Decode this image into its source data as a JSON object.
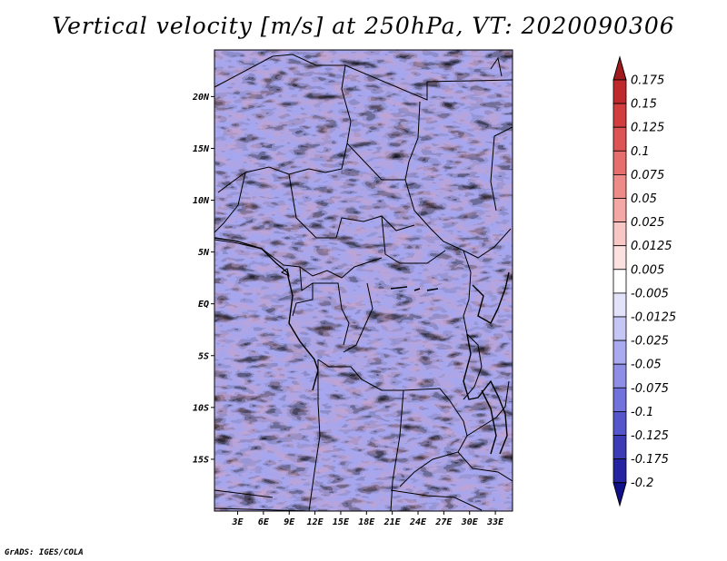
{
  "title": "Vertical velocity [m/s] at 250hPa, VT: 2020090306",
  "credit": "GrADS: IGES/COLA",
  "map": {
    "lat_ticks": [
      {
        "label": "20N",
        "lat": 20
      },
      {
        "label": "15N",
        "lat": 15
      },
      {
        "label": "10N",
        "lat": 10
      },
      {
        "label": "5N",
        "lat": 5
      },
      {
        "label": "EQ",
        "lat": 0
      },
      {
        "label": "5S",
        "lat": -5
      },
      {
        "label": "10S",
        "lat": -10
      },
      {
        "label": "15S",
        "lat": -15
      }
    ],
    "lon_ticks": [
      {
        "label": "3E",
        "lon": 3
      },
      {
        "label": "6E",
        "lon": 6
      },
      {
        "label": "9E",
        "lon": 9
      },
      {
        "label": "12E",
        "lon": 12
      },
      {
        "label": "15E",
        "lon": 15
      },
      {
        "label": "18E",
        "lon": 18
      },
      {
        "label": "21E",
        "lon": 21
      },
      {
        "label": "24E",
        "lon": 24
      },
      {
        "label": "27E",
        "lon": 27
      },
      {
        "label": "30E",
        "lon": 30
      },
      {
        "label": "33E",
        "lon": 33
      }
    ],
    "lat_range": [
      -20,
      24.5
    ],
    "lon_range": [
      0.3,
      35
    ]
  },
  "colorbar": {
    "labels": [
      "0.175",
      "0.15",
      "0.125",
      "0.1",
      "0.075",
      "0.05",
      "0.025",
      "0.0125",
      "0.005",
      "-0.005",
      "-0.0125",
      "-0.025",
      "-0.05",
      "-0.075",
      "-0.1",
      "-0.125",
      "-0.175",
      "-0.2"
    ],
    "colors": [
      "#a01a1e",
      "#c0292c",
      "#d23d3e",
      "#de5454",
      "#e66e6c",
      "#ee8a88",
      "#f4a8a6",
      "#f8c6c4",
      "#fbe2e0",
      "#ffffff",
      "#e2e2fb",
      "#c6c6f6",
      "#aaaaf0",
      "#8e8ee6",
      "#7272dc",
      "#5656cc",
      "#3c3cb6",
      "#2424a0",
      "#10108a"
    ]
  }
}
